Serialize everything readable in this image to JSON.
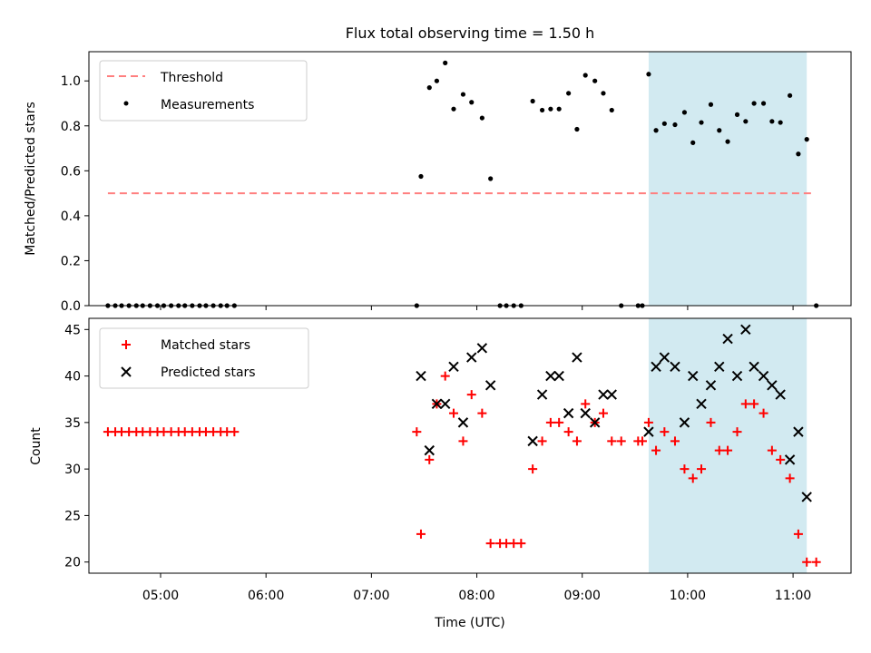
{
  "figure": {
    "title": "Flux total observing time = 1.50 h"
  },
  "colors": {
    "threshold": "#ff7f7f",
    "measurement": "#000000",
    "matched": "#ff0000",
    "predicted": "#000000",
    "shade": "#add8e6"
  },
  "chart_data": [
    {
      "type": "scatter",
      "name": "ratio-panel",
      "xlabel": "",
      "ylabel": "Matched/Predicted stars",
      "xlim": [
        4.32,
        11.55
      ],
      "ylim": [
        0.0,
        1.13
      ],
      "yticks": [
        0.0,
        0.2,
        0.4,
        0.6,
        0.8,
        1.0
      ],
      "ytick_labels": [
        "0.0",
        "0.2",
        "0.4",
        "0.6",
        "0.8",
        "1.0"
      ],
      "shaded_interval": [
        9.63,
        11.13
      ],
      "legend": {
        "position": "top-left",
        "entries": [
          "Threshold",
          "Measurements"
        ]
      },
      "threshold": {
        "name": "Threshold",
        "y": 0.5,
        "x_range": [
          4.5,
          11.17
        ]
      },
      "series": [
        {
          "name": "Measurements",
          "points": [
            [
              4.5,
              0
            ],
            [
              4.57,
              0
            ],
            [
              4.63,
              0
            ],
            [
              4.7,
              0
            ],
            [
              4.77,
              0
            ],
            [
              4.83,
              0
            ],
            [
              4.9,
              0
            ],
            [
              4.97,
              0
            ],
            [
              5.03,
              0
            ],
            [
              5.1,
              0
            ],
            [
              5.17,
              0
            ],
            [
              5.23,
              0
            ],
            [
              5.3,
              0
            ],
            [
              5.37,
              0
            ],
            [
              5.43,
              0
            ],
            [
              5.5,
              0
            ],
            [
              5.57,
              0
            ],
            [
              5.63,
              0
            ],
            [
              5.7,
              0
            ],
            [
              7.43,
              0
            ],
            [
              7.47,
              0.575
            ],
            [
              7.55,
              0.97
            ],
            [
              7.62,
              1.0
            ],
            [
              7.7,
              1.08
            ],
            [
              7.78,
              0.875
            ],
            [
              7.87,
              0.94
            ],
            [
              7.95,
              0.905
            ],
            [
              8.05,
              0.835
            ],
            [
              8.13,
              0.565
            ],
            [
              8.22,
              0
            ],
            [
              8.28,
              0
            ],
            [
              8.35,
              0
            ],
            [
              8.42,
              0
            ],
            [
              8.53,
              0.91
            ],
            [
              8.62,
              0.87
            ],
            [
              8.7,
              0.875
            ],
            [
              8.78,
              0.875
            ],
            [
              8.87,
              0.945
            ],
            [
              8.95,
              0.785
            ],
            [
              9.03,
              1.025
            ],
            [
              9.12,
              1.0
            ],
            [
              9.2,
              0.945
            ],
            [
              9.28,
              0.87
            ],
            [
              9.37,
              0
            ],
            [
              9.53,
              0
            ],
            [
              9.57,
              0
            ],
            [
              9.63,
              1.03
            ],
            [
              9.7,
              0.78
            ],
            [
              9.78,
              0.81
            ],
            [
              9.88,
              0.805
            ],
            [
              9.97,
              0.86
            ],
            [
              10.05,
              0.725
            ],
            [
              10.13,
              0.815
            ],
            [
              10.22,
              0.895
            ],
            [
              10.3,
              0.78
            ],
            [
              10.38,
              0.73
            ],
            [
              10.47,
              0.85
            ],
            [
              10.55,
              0.82
            ],
            [
              10.63,
              0.9
            ],
            [
              10.72,
              0.9
            ],
            [
              10.8,
              0.82
            ],
            [
              10.88,
              0.815
            ],
            [
              10.97,
              0.935
            ],
            [
              11.05,
              0.675
            ],
            [
              11.13,
              0.74
            ],
            [
              11.22,
              0
            ]
          ]
        }
      ]
    },
    {
      "type": "scatter",
      "name": "count-panel",
      "xlabel": "Time (UTC)",
      "ylabel": "Count",
      "xlim": [
        4.32,
        11.55
      ],
      "ylim": [
        18.8,
        46.2
      ],
      "yticks": [
        20,
        25,
        30,
        35,
        40,
        45
      ],
      "ytick_labels": [
        "20",
        "25",
        "30",
        "35",
        "40",
        "45"
      ],
      "xticks": [
        5,
        6,
        7,
        8,
        9,
        10,
        11
      ],
      "xtick_labels": [
        "05:00",
        "06:00",
        "07:00",
        "08:00",
        "09:00",
        "10:00",
        "11:00"
      ],
      "shaded_interval": [
        9.63,
        11.13
      ],
      "legend": {
        "position": "top-left",
        "entries": [
          "Matched stars",
          "Predicted stars"
        ]
      },
      "series": [
        {
          "name": "Matched stars",
          "points": [
            [
              4.5,
              34
            ],
            [
              4.57,
              34
            ],
            [
              4.63,
              34
            ],
            [
              4.7,
              34
            ],
            [
              4.77,
              34
            ],
            [
              4.83,
              34
            ],
            [
              4.9,
              34
            ],
            [
              4.97,
              34
            ],
            [
              5.03,
              34
            ],
            [
              5.1,
              34
            ],
            [
              5.17,
              34
            ],
            [
              5.23,
              34
            ],
            [
              5.3,
              34
            ],
            [
              5.37,
              34
            ],
            [
              5.43,
              34
            ],
            [
              5.5,
              34
            ],
            [
              5.57,
              34
            ],
            [
              5.63,
              34
            ],
            [
              5.7,
              34
            ],
            [
              7.43,
              34
            ],
            [
              7.47,
              23
            ],
            [
              7.55,
              31
            ],
            [
              7.62,
              37
            ],
            [
              7.7,
              40
            ],
            [
              7.78,
              36
            ],
            [
              7.87,
              33
            ],
            [
              7.95,
              38
            ],
            [
              8.05,
              36
            ],
            [
              8.13,
              22
            ],
            [
              8.22,
              22
            ],
            [
              8.28,
              22
            ],
            [
              8.35,
              22
            ],
            [
              8.42,
              22
            ],
            [
              8.53,
              30
            ],
            [
              8.62,
              33
            ],
            [
              8.7,
              35
            ],
            [
              8.78,
              35
            ],
            [
              8.87,
              34
            ],
            [
              8.95,
              33
            ],
            [
              9.03,
              37
            ],
            [
              9.12,
              35
            ],
            [
              9.2,
              36
            ],
            [
              9.28,
              33
            ],
            [
              9.37,
              33
            ],
            [
              9.53,
              33
            ],
            [
              9.57,
              33
            ],
            [
              9.63,
              35
            ],
            [
              9.7,
              32
            ],
            [
              9.78,
              34
            ],
            [
              9.88,
              33
            ],
            [
              9.97,
              30
            ],
            [
              10.05,
              29
            ],
            [
              10.13,
              30
            ],
            [
              10.22,
              35
            ],
            [
              10.3,
              32
            ],
            [
              10.38,
              32
            ],
            [
              10.47,
              34
            ],
            [
              10.55,
              37
            ],
            [
              10.63,
              37
            ],
            [
              10.72,
              36
            ],
            [
              10.8,
              32
            ],
            [
              10.88,
              31
            ],
            [
              10.97,
              29
            ],
            [
              11.05,
              23
            ],
            [
              11.13,
              20
            ],
            [
              11.22,
              20
            ]
          ]
        },
        {
          "name": "Predicted stars",
          "points": [
            [
              7.47,
              40
            ],
            [
              7.55,
              32
            ],
            [
              7.62,
              37
            ],
            [
              7.7,
              37
            ],
            [
              7.78,
              41
            ],
            [
              7.87,
              35
            ],
            [
              7.95,
              42
            ],
            [
              8.05,
              43
            ],
            [
              8.13,
              39
            ],
            [
              8.53,
              33
            ],
            [
              8.62,
              38
            ],
            [
              8.7,
              40
            ],
            [
              8.78,
              40
            ],
            [
              8.87,
              36
            ],
            [
              8.95,
              42
            ],
            [
              9.03,
              36
            ],
            [
              9.12,
              35
            ],
            [
              9.2,
              38
            ],
            [
              9.28,
              38
            ],
            [
              9.63,
              34
            ],
            [
              9.7,
              41
            ],
            [
              9.78,
              42
            ],
            [
              9.88,
              41
            ],
            [
              9.97,
              35
            ],
            [
              10.05,
              40
            ],
            [
              10.13,
              37
            ],
            [
              10.22,
              39
            ],
            [
              10.3,
              41
            ],
            [
              10.38,
              44
            ],
            [
              10.47,
              40
            ],
            [
              10.55,
              45
            ],
            [
              10.63,
              41
            ],
            [
              10.72,
              40
            ],
            [
              10.8,
              39
            ],
            [
              10.88,
              38
            ],
            [
              10.97,
              31
            ],
            [
              11.05,
              34
            ],
            [
              11.13,
              27
            ]
          ]
        }
      ]
    }
  ]
}
